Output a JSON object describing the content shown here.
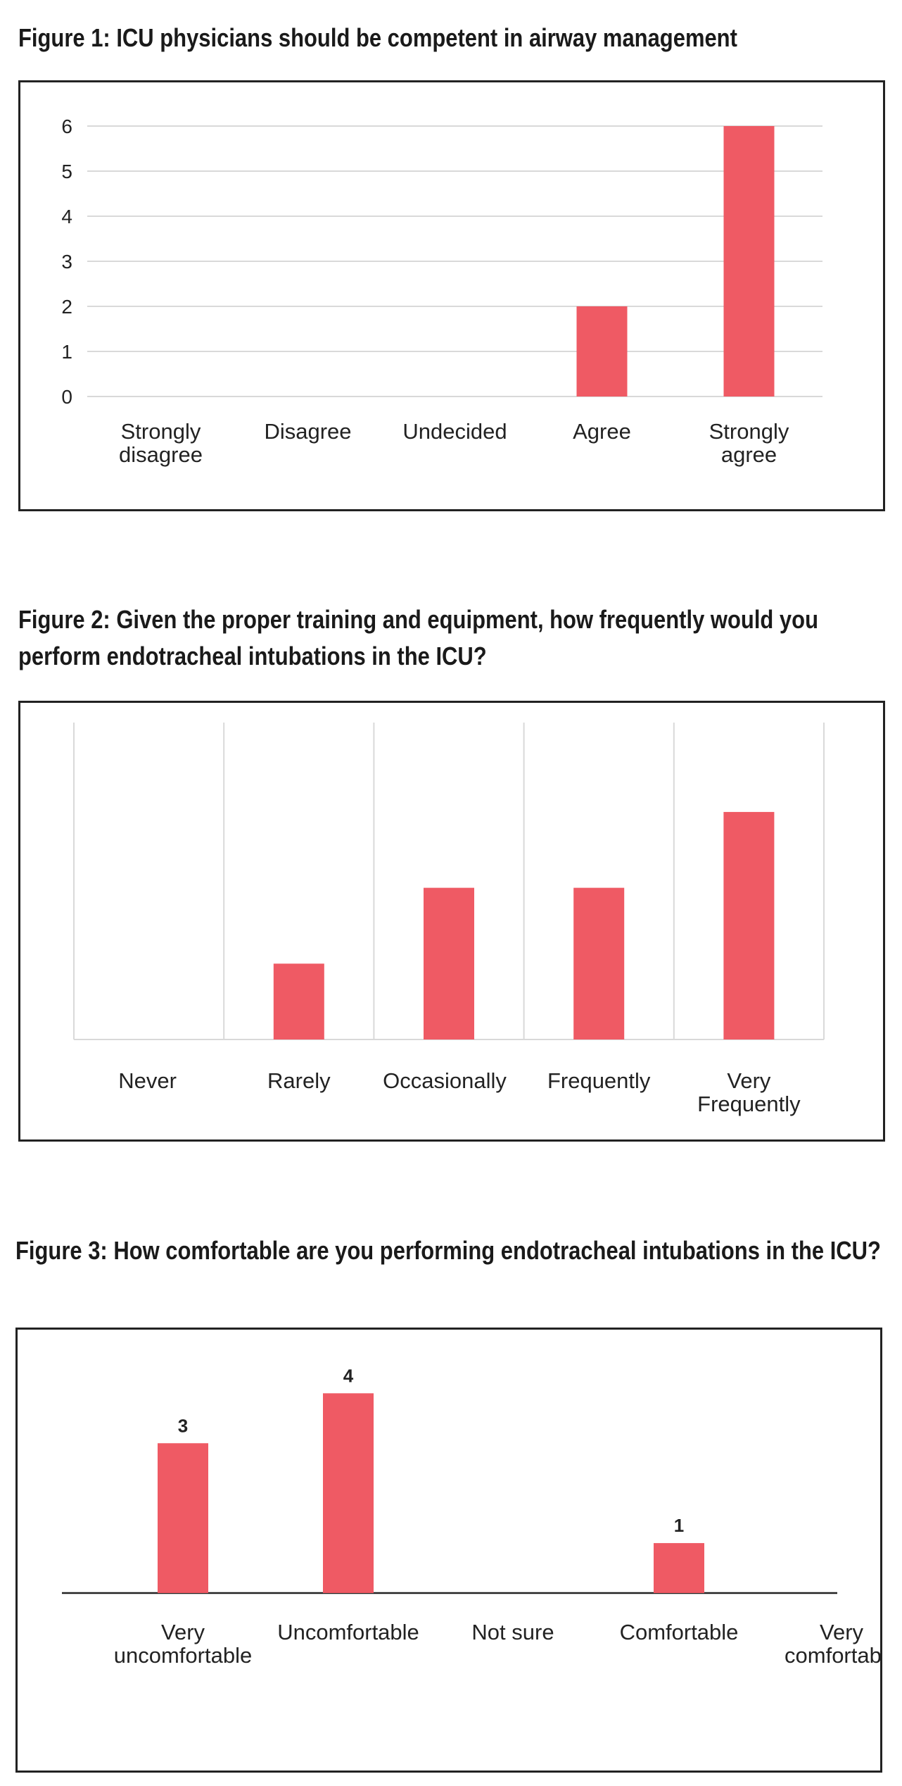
{
  "chart_data": [
    {
      "type": "bar",
      "title": "Figure 1: ICU physicians should be competent in airway management",
      "categories": [
        [
          "Strongly",
          "disagree"
        ],
        [
          "Disagree"
        ],
        [
          "Undecided"
        ],
        [
          "Agree"
        ],
        [
          "Strongly",
          "agree"
        ]
      ],
      "values": [
        0,
        0,
        0,
        2,
        6
      ],
      "ylim": [
        0,
        6
      ],
      "yticks": [
        0,
        1,
        2,
        3,
        4,
        5,
        6
      ],
      "grid": true,
      "color": "#ef5a64"
    },
    {
      "type": "bar",
      "title": "Figure 2: Given the proper training and equipment, how frequently would you perform endotracheal intubations in the ICU?",
      "categories": [
        [
          "Never"
        ],
        [
          "Rarely"
        ],
        [
          "Occasionally"
        ],
        [
          "Frequently"
        ],
        [
          "Very",
          "Frequently"
        ]
      ],
      "values": [
        0,
        1,
        2,
        2,
        3
      ],
      "ylim": [
        0,
        3.9
      ],
      "grid": "vertical",
      "color": "#ef5a64"
    },
    {
      "type": "bar",
      "title": "Figure 3: How comfortable are you performing endotracheal intubations in the ICU?",
      "categories": [
        [
          "Very",
          "uncomfortable"
        ],
        [
          "Uncomfortable"
        ],
        [
          "Not sure"
        ],
        [
          "Comfortable"
        ],
        [
          "Very",
          "comfortable"
        ]
      ],
      "values": [
        3,
        4,
        0,
        1,
        0
      ],
      "data_labels": [
        "3",
        "4",
        "",
        "1",
        ""
      ],
      "ylim": [
        0,
        4.4
      ],
      "grid": false,
      "color": "#ef5a64"
    }
  ]
}
